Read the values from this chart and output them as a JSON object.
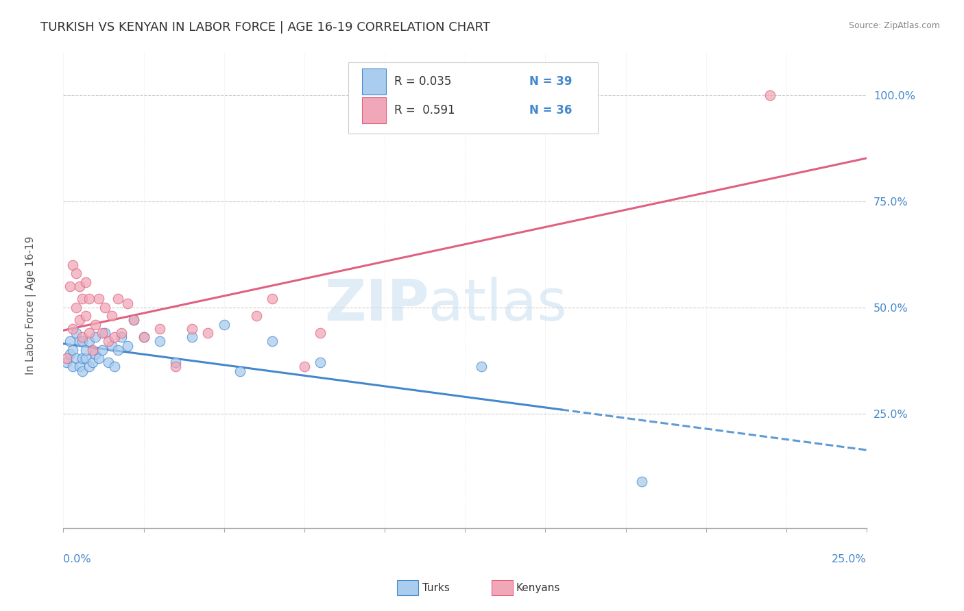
{
  "title": "TURKISH VS KENYAN IN LABOR FORCE | AGE 16-19 CORRELATION CHART",
  "source": "Source: ZipAtlas.com",
  "ylabel": "In Labor Force | Age 16-19",
  "xlim": [
    0.0,
    0.25
  ],
  "ylim": [
    -0.02,
    1.1
  ],
  "ytick_values": [
    0.25,
    0.5,
    0.75,
    1.0
  ],
  "ytick_labels": [
    "25.0%",
    "50.0%",
    "75.0%",
    "100.0%"
  ],
  "legend_r_turks": "R = 0.035",
  "legend_n_turks": "N = 39",
  "legend_r_kenyans": "R =  0.591",
  "legend_n_kenyans": "N = 36",
  "turks_color": "#aaccee",
  "kenyans_color": "#f0a8b8",
  "turks_line_color": "#4488cc",
  "kenyans_line_color": "#e06080",
  "turks_x": [
    0.001,
    0.002,
    0.002,
    0.003,
    0.003,
    0.004,
    0.004,
    0.005,
    0.005,
    0.006,
    0.006,
    0.006,
    0.007,
    0.007,
    0.008,
    0.008,
    0.009,
    0.01,
    0.01,
    0.011,
    0.012,
    0.013,
    0.014,
    0.015,
    0.016,
    0.017,
    0.018,
    0.02,
    0.022,
    0.025,
    0.03,
    0.035,
    0.04,
    0.05,
    0.055,
    0.065,
    0.08,
    0.13,
    0.18
  ],
  "turks_y": [
    0.37,
    0.39,
    0.42,
    0.36,
    0.4,
    0.38,
    0.44,
    0.36,
    0.42,
    0.35,
    0.38,
    0.42,
    0.38,
    0.4,
    0.36,
    0.42,
    0.37,
    0.39,
    0.43,
    0.38,
    0.4,
    0.44,
    0.37,
    0.41,
    0.36,
    0.4,
    0.43,
    0.41,
    0.47,
    0.43,
    0.42,
    0.37,
    0.43,
    0.46,
    0.35,
    0.42,
    0.37,
    0.36,
    0.09
  ],
  "kenyans_x": [
    0.001,
    0.002,
    0.003,
    0.003,
    0.004,
    0.004,
    0.005,
    0.005,
    0.006,
    0.006,
    0.007,
    0.007,
    0.008,
    0.008,
    0.009,
    0.01,
    0.011,
    0.012,
    0.013,
    0.014,
    0.015,
    0.016,
    0.017,
    0.018,
    0.02,
    0.022,
    0.025,
    0.03,
    0.035,
    0.04,
    0.045,
    0.06,
    0.065,
    0.075,
    0.08,
    0.22
  ],
  "kenyans_y": [
    0.38,
    0.55,
    0.45,
    0.6,
    0.5,
    0.58,
    0.47,
    0.55,
    0.43,
    0.52,
    0.48,
    0.56,
    0.44,
    0.52,
    0.4,
    0.46,
    0.52,
    0.44,
    0.5,
    0.42,
    0.48,
    0.43,
    0.52,
    0.44,
    0.51,
    0.47,
    0.43,
    0.45,
    0.36,
    0.45,
    0.44,
    0.48,
    0.52,
    0.36,
    0.44,
    1.0
  ]
}
